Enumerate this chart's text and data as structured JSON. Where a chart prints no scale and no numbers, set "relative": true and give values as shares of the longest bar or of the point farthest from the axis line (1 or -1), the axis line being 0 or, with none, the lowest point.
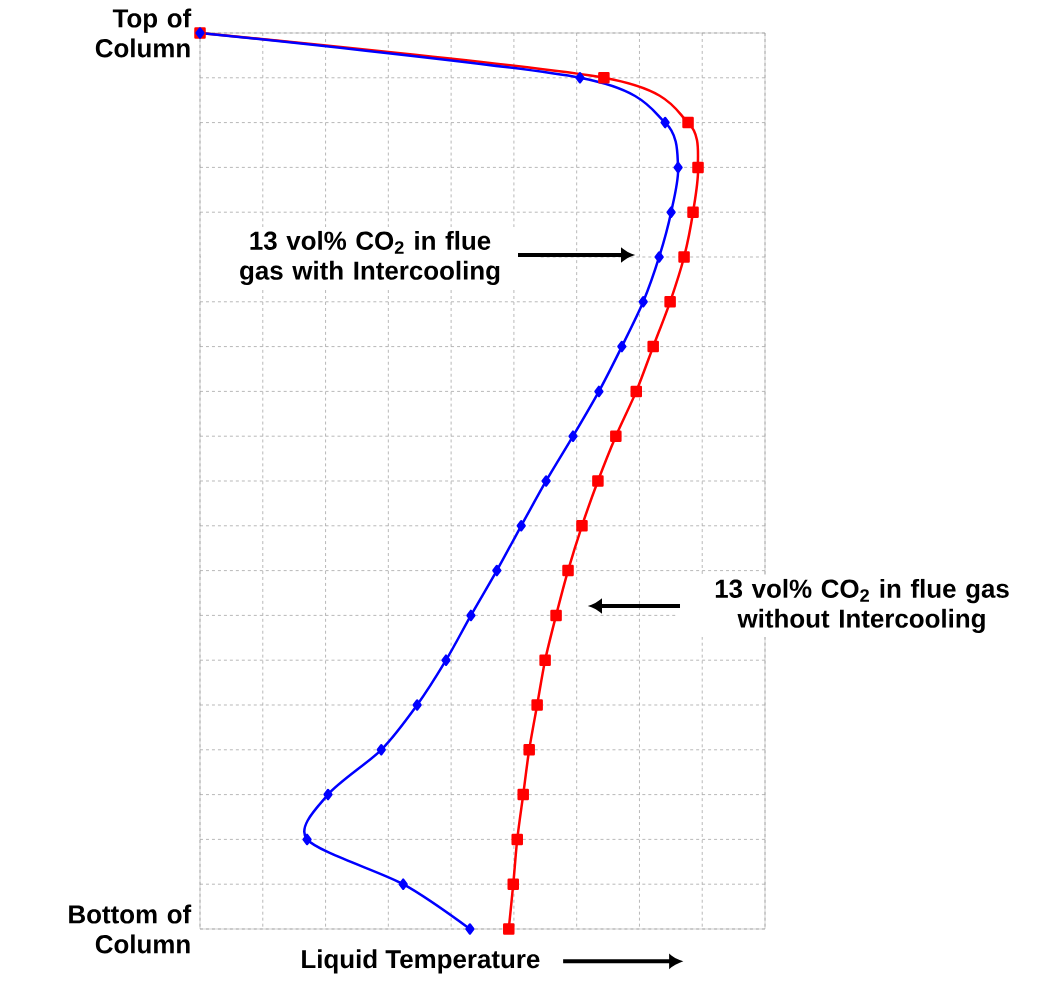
{
  "chart_data": {
    "type": "line",
    "orientation": "horizontal",
    "relative": true,
    "grid": true,
    "tick_labels": "y",
    "line_style": "solid",
    "xlabel": "Liquid Temperature",
    "categories": [
      "Top of Column",
      null,
      null,
      null,
      null,
      null,
      null,
      null,
      null,
      null,
      null,
      null,
      null,
      null,
      null,
      null,
      null,
      null,
      null,
      null,
      "Bottom of Column"
    ],
    "series": [
      {
        "color": "#ff0000",
        "marker": "square",
        "values": [
          0,
          0.811,
          0.98,
          1,
          0.99,
          0.972,
          0.944,
          0.91,
          0.876,
          0.835,
          0.799,
          0.767,
          0.739,
          0.715,
          0.693,
          0.677,
          0.661,
          0.649,
          0.637,
          0.629,
          0.62
        ]
      },
      {
        "color": "#0000ff",
        "marker": "diamond",
        "values": [
          0,
          0.763,
          0.934,
          0.96,
          0.946,
          0.922,
          0.89,
          0.847,
          0.801,
          0.749,
          0.695,
          0.645,
          0.596,
          0.544,
          0.494,
          0.436,
          0.364,
          0.257,
          0.215,
          0.408,
          0.542
        ]
      }
    ],
    "annotations": [
      "13 vol% CO$_{2}$ in flue gas with Intercooling",
      "13 vol% CO$_{2}$ in flue gas without Intercooling"
    ]
  }
}
